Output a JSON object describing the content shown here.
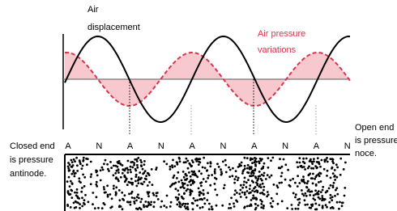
{
  "labels": {
    "air_displacement": [
      "Air",
      "displacement"
    ],
    "air_pressure": [
      "Air pressure",
      "variations"
    ],
    "closed_end": [
      "Closed end",
      "is pressure",
      "antinode."
    ],
    "open_end": [
      "Open end",
      "is pressure",
      "noce."
    ]
  },
  "positions": [
    "A",
    "N",
    "A",
    "N",
    "A",
    "N",
    "A",
    "N",
    "A",
    "N"
  ]
}
